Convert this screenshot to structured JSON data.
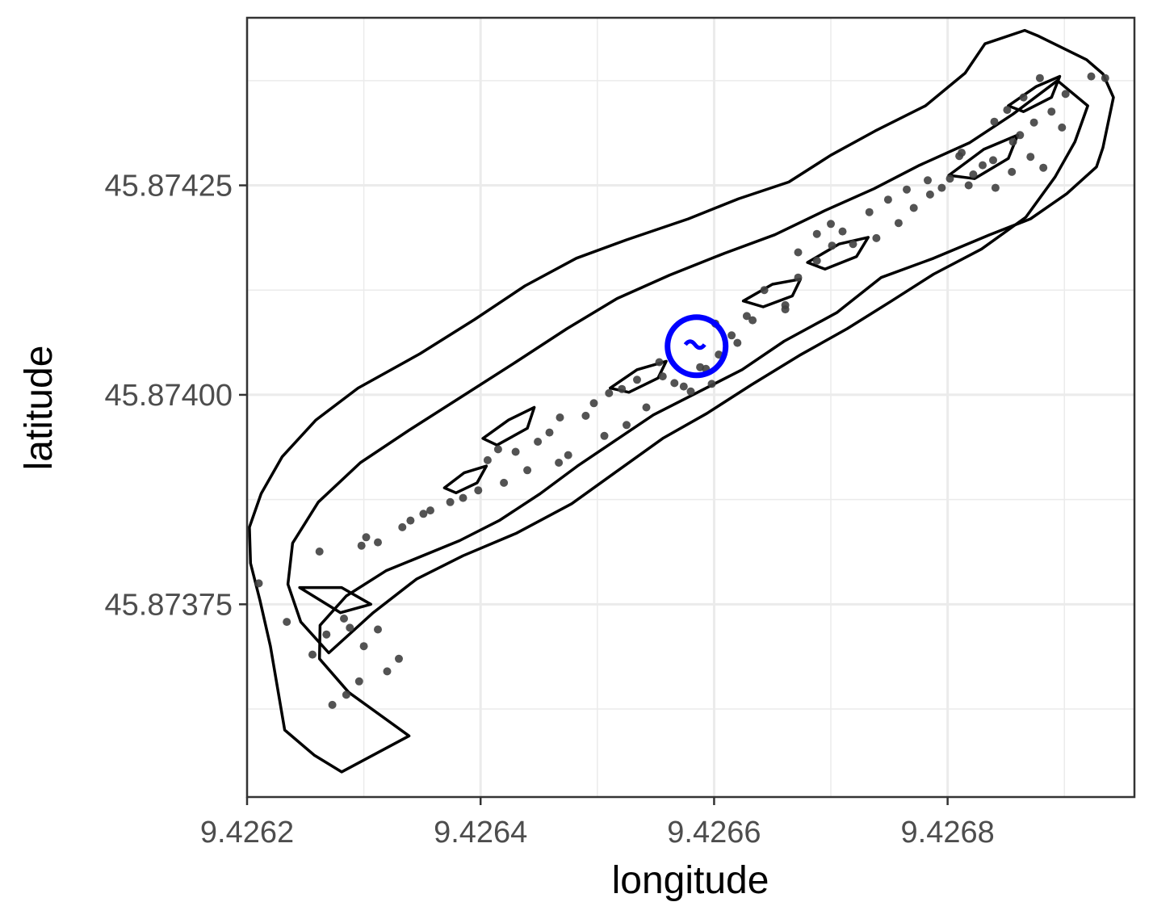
{
  "chart_data": {
    "type": "scatter",
    "title": "",
    "xlabel": "longitude",
    "ylabel": "latitude",
    "xlim": [
      9.4262,
      9.42696
    ],
    "ylim": [
      45.87352,
      45.87445
    ],
    "x_ticks": [
      {
        "value": 9.4262,
        "label": "9.4262"
      },
      {
        "value": 9.4264,
        "label": "9.4264"
      },
      {
        "value": 9.4266,
        "label": "9.4266"
      },
      {
        "value": 9.4268,
        "label": "9.4268"
      }
    ],
    "y_ticks": [
      {
        "value": 45.87375,
        "label": "45.87375"
      },
      {
        "value": 45.874,
        "label": "45.87400"
      },
      {
        "value": 45.87425,
        "label": "45.87425"
      }
    ],
    "grid": true,
    "legend": "none",
    "colors": {
      "points": "#404040",
      "outline": "#000000",
      "highlight": "#0000ff",
      "grid": "#ebebeb"
    },
    "highlight": {
      "x": 9.426585,
      "y": 45.874058
    },
    "points": [
      [
        9.426273,
        45.87363
      ],
      [
        9.426285,
        45.873642
      ],
      [
        9.426296,
        45.873658
      ],
      [
        9.42632,
        45.87367
      ],
      [
        9.42633,
        45.873685
      ],
      [
        9.4263,
        45.8737
      ],
      [
        9.426256,
        45.87369
      ],
      [
        9.426312,
        45.87372
      ],
      [
        9.426283,
        45.873733
      ],
      [
        9.426268,
        45.873714
      ],
      [
        9.426288,
        45.873722
      ],
      [
        9.426234,
        45.873729
      ],
      [
        9.42621,
        45.873775
      ],
      [
        9.426262,
        45.873813
      ],
      [
        9.426298,
        45.87382
      ],
      [
        9.426312,
        45.873824
      ],
      [
        9.42634,
        45.87385
      ],
      [
        9.426357,
        45.873862
      ],
      [
        9.426385,
        45.873877
      ],
      [
        9.42642,
        45.873895
      ],
      [
        9.42644,
        45.87391
      ],
      [
        9.426415,
        45.873935
      ],
      [
        9.426467,
        45.873919
      ],
      [
        9.426459,
        45.873955
      ],
      [
        9.426475,
        45.873928
      ],
      [
        9.426506,
        45.873951
      ],
      [
        9.426525,
        45.873964
      ],
      [
        9.426542,
        45.873985
      ],
      [
        9.426574,
        45.87401
      ],
      [
        9.42658,
        45.874004
      ],
      [
        9.426598,
        45.874013
      ],
      [
        9.426604,
        45.874048
      ],
      [
        9.42662,
        45.874062
      ],
      [
        9.426633,
        45.874089
      ],
      [
        9.426661,
        45.874102
      ],
      [
        9.426672,
        45.87414
      ],
      [
        9.426688,
        45.87416
      ],
      [
        9.426701,
        45.874178
      ],
      [
        9.426719,
        45.87418
      ],
      [
        9.426739,
        45.874187
      ],
      [
        9.426758,
        45.874205
      ],
      [
        9.426771,
        45.874223
      ],
      [
        9.426785,
        45.874239
      ],
      [
        9.426802,
        45.874258
      ],
      [
        9.426822,
        45.874263
      ],
      [
        9.426839,
        45.87428
      ],
      [
        9.426856,
        45.874302
      ],
      [
        9.426874,
        45.874325
      ],
      [
        9.426889,
        45.874338
      ],
      [
        9.426901,
        45.874359
      ],
      [
        9.426923,
        45.87438
      ],
      [
        9.426935,
        45.874378
      ],
      [
        9.426851,
        45.87434
      ],
      [
        9.426862,
        45.87431
      ],
      [
        9.42683,
        45.874274
      ],
      [
        9.42681,
        45.874285
      ],
      [
        9.426795,
        45.874247
      ],
      [
        9.426765,
        45.874245
      ],
      [
        9.42671,
        45.874195
      ],
      [
        9.426661,
        45.874107
      ],
      [
        9.426601,
        45.874085
      ],
      [
        9.426566,
        45.874014
      ],
      [
        9.426588,
        45.874033
      ],
      [
        9.426553,
        45.874039
      ],
      [
        9.426534,
        45.874018
      ],
      [
        9.42651,
        45.874002
      ],
      [
        9.426497,
        45.87399
      ],
      [
        9.426468,
        45.873973
      ],
      [
        9.426449,
        45.873944
      ],
      [
        9.42643,
        45.873932
      ],
      [
        9.426406,
        45.873922
      ],
      [
        9.426398,
        45.873886
      ],
      [
        9.426374,
        45.873872
      ],
      [
        9.426351,
        45.873858
      ],
      [
        9.426333,
        45.873842
      ],
      [
        9.426302,
        45.87383
      ],
      [
        9.426879,
        45.874378
      ],
      [
        9.426865,
        45.874355
      ],
      [
        9.42684,
        45.874326
      ],
      [
        9.426812,
        45.874289
      ],
      [
        9.426898,
        45.874319
      ],
      [
        9.426871,
        45.874284
      ],
      [
        9.426882,
        45.874271
      ],
      [
        9.426855,
        45.874266
      ],
      [
        9.426841,
        45.874247
      ],
      [
        9.426818,
        45.87425
      ],
      [
        9.426783,
        45.874256
      ],
      [
        9.426749,
        45.874233
      ],
      [
        9.426733,
        45.874218
      ],
      [
        9.4267,
        45.874204
      ],
      [
        9.426688,
        45.874192
      ],
      [
        9.426672,
        45.87417
      ],
      [
        9.426643,
        45.874125
      ],
      [
        9.426628,
        45.874094
      ],
      [
        9.426615,
        45.874071
      ],
      [
        9.426593,
        45.874031
      ],
      [
        9.426556,
        45.874022
      ],
      [
        9.426521,
        45.874007
      ],
      [
        9.42649,
        45.873975
      ]
    ],
    "outer_boundary": [
      [
        9.4262322,
        45.8736
      ],
      [
        9.4262575,
        45.87357
      ],
      [
        9.426281,
        45.87355
      ],
      [
        9.4263387,
        45.873593
      ],
      [
        9.426287,
        45.873645
      ],
      [
        9.426262,
        45.873685
      ],
      [
        9.4262625,
        45.873725
      ],
      [
        9.426285,
        45.87376
      ],
      [
        9.426319,
        45.87379
      ],
      [
        9.426382,
        45.873826
      ],
      [
        9.426416,
        45.87385
      ],
      [
        9.426451,
        45.873882
      ],
      [
        9.426483,
        45.873915
      ],
      [
        9.426517,
        45.873947
      ],
      [
        9.426548,
        45.873976
      ],
      [
        9.426586,
        45.874003
      ],
      [
        9.426624,
        45.87403
      ],
      [
        9.42666,
        45.874064
      ],
      [
        9.426705,
        45.874098
      ],
      [
        9.426743,
        45.87414
      ],
      [
        9.426788,
        45.874163
      ],
      [
        9.426836,
        45.874191
      ],
      [
        9.426871,
        45.87421
      ],
      [
        9.426902,
        45.87424
      ],
      [
        9.4269275,
        45.874272
      ],
      [
        9.426933,
        45.874295
      ],
      [
        9.426942,
        45.874355
      ],
      [
        9.426933,
        45.874383
      ],
      [
        9.426919,
        45.8744
      ],
      [
        9.426878,
        45.874428
      ],
      [
        9.426866,
        45.874435
      ],
      [
        9.426832,
        45.874419
      ],
      [
        9.426815,
        45.874384
      ],
      [
        9.426781,
        45.874345
      ],
      [
        9.426738,
        45.874315
      ],
      [
        9.4267,
        45.874286
      ],
      [
        9.426664,
        45.874254
      ],
      [
        9.426621,
        45.874234
      ],
      [
        9.426578,
        45.87421
      ],
      [
        9.426525,
        45.874185
      ],
      [
        9.426482,
        45.874163
      ],
      [
        9.426438,
        45.87413
      ],
      [
        9.426395,
        45.87409
      ],
      [
        9.426348,
        45.874049
      ],
      [
        9.426295,
        45.874008
      ],
      [
        9.426259,
        45.87397
      ],
      [
        9.42623,
        45.873926
      ],
      [
        9.426212,
        45.873882
      ],
      [
        9.426202,
        45.873842
      ],
      [
        9.426203,
        45.873799
      ],
      [
        9.426211,
        45.873755
      ],
      [
        9.42622,
        45.8737
      ],
      [
        9.4262322,
        45.8736
      ]
    ],
    "inner_boundary": [
      [
        9.42627,
        45.873692
      ],
      [
        9.426308,
        45.87374
      ],
      [
        9.426345,
        45.87378
      ],
      [
        9.426385,
        45.873808
      ],
      [
        9.426431,
        45.873835
      ],
      [
        9.426478,
        45.87387
      ],
      [
        9.426518,
        45.87391
      ],
      [
        9.426556,
        45.873948
      ],
      [
        9.426594,
        45.873978
      ],
      [
        9.426632,
        45.874012
      ],
      [
        9.426673,
        45.874047
      ],
      [
        9.426714,
        45.874079
      ],
      [
        9.426752,
        45.874112
      ],
      [
        9.426788,
        45.874144
      ],
      [
        9.426829,
        45.874174
      ],
      [
        9.426867,
        45.874212
      ],
      [
        9.426892,
        45.87426
      ],
      [
        9.426909,
        45.874302
      ],
      [
        9.42692,
        45.874345
      ],
      [
        9.426894,
        45.874375
      ],
      [
        9.426856,
        45.874335
      ],
      [
        9.426819,
        45.874301
      ],
      [
        9.426776,
        45.874274
      ],
      [
        9.426737,
        45.874246
      ],
      [
        9.426695,
        45.87422
      ],
      [
        9.426652,
        45.874191
      ],
      [
        9.426609,
        45.874169
      ],
      [
        9.426562,
        45.874143
      ],
      [
        9.426517,
        45.874115
      ],
      [
        9.426474,
        45.874079
      ],
      [
        9.42643,
        45.874039
      ],
      [
        9.426384,
        45.873998
      ],
      [
        9.426339,
        45.873958
      ],
      [
        9.426297,
        45.873919
      ],
      [
        9.426261,
        45.873872
      ],
      [
        9.426239,
        45.873823
      ],
      [
        9.426235,
        45.873774
      ],
      [
        9.426246,
        45.873729
      ],
      [
        9.42627,
        45.873692
      ]
    ],
    "sub_polygons": [
      [
        [
          9.426369,
          45.873889
        ],
        [
          9.426386,
          45.873907
        ],
        [
          9.426405,
          45.873915
        ],
        [
          9.426397,
          45.873895
        ],
        [
          9.426379,
          45.873883
        ],
        [
          9.426369,
          45.873889
        ]
      ],
      [
        [
          9.426402,
          45.873948
        ],
        [
          9.426424,
          45.87397
        ],
        [
          9.426446,
          45.873985
        ],
        [
          9.42644,
          45.87396
        ],
        [
          9.426414,
          45.87394
        ],
        [
          9.426402,
          45.873948
        ]
      ],
      [
        [
          9.426511,
          45.874008
        ],
        [
          9.426534,
          45.87403
        ],
        [
          9.426559,
          45.87404
        ],
        [
          9.426552,
          45.87402
        ],
        [
          9.426527,
          45.874003
        ],
        [
          9.426511,
          45.874008
        ]
      ],
      [
        [
          9.426625,
          45.874112
        ],
        [
          9.42665,
          45.874132
        ],
        [
          9.426674,
          45.874138
        ],
        [
          9.426667,
          45.874118
        ],
        [
          9.426642,
          45.874105
        ],
        [
          9.426625,
          45.874112
        ]
      ],
      [
        [
          9.42668,
          45.874158
        ],
        [
          9.426707,
          45.87418
        ],
        [
          9.426732,
          45.874188
        ],
        [
          9.426722,
          45.874165
        ],
        [
          9.426695,
          45.87415
        ],
        [
          9.42668,
          45.874158
        ]
      ],
      [
        [
          9.426801,
          45.874262
        ],
        [
          9.426831,
          45.874293
        ],
        [
          9.42686,
          45.87431
        ],
        [
          9.426852,
          45.874282
        ],
        [
          9.426823,
          45.874258
        ],
        [
          9.426801,
          45.874262
        ]
      ],
      [
        [
          9.426852,
          45.874345
        ],
        [
          9.426876,
          45.874368
        ],
        [
          9.426896,
          45.87438
        ],
        [
          9.426889,
          45.874355
        ],
        [
          9.426865,
          45.874338
        ],
        [
          9.426852,
          45.874345
        ]
      ],
      [
        [
          9.426245,
          45.87377
        ],
        [
          9.42628,
          45.87374
        ],
        [
          9.426306,
          45.87375
        ],
        [
          9.426281,
          45.87377
        ],
        [
          9.426245,
          45.87377
        ]
      ]
    ]
  }
}
